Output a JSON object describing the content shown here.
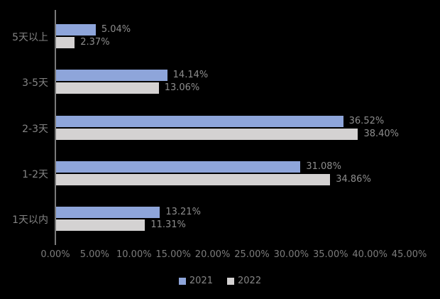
{
  "chart_data": {
    "type": "bar",
    "orientation": "horizontal",
    "title": "",
    "xlabel": "",
    "ylabel": "",
    "background_color": "#000000",
    "grid": false,
    "categories": [
      "5天以上",
      "3-5天",
      "2-3天",
      "1-2天",
      "1天以内"
    ],
    "series": [
      {
        "name": "2021",
        "color": "#8ea5da",
        "values": [
          5.04,
          14.14,
          36.52,
          31.08,
          13.21
        ],
        "data_labels": [
          "5.04%",
          "14.14%",
          "36.52%",
          "31.08%",
          "13.21%"
        ]
      },
      {
        "name": "2022",
        "color": "#d4d2d2",
        "values": [
          2.37,
          13.06,
          38.4,
          34.86,
          11.31
        ],
        "data_labels": [
          "2.37%",
          "13.06%",
          "38.40%",
          "34.86%",
          "11.31%"
        ]
      }
    ],
    "x_axis": {
      "min": 0,
      "max": 45,
      "tick_step": 5,
      "tick_labels": [
        "0.00%",
        "5.00%",
        "10.00%",
        "15.00%",
        "20.00%",
        "25.00%",
        "30.00%",
        "35.00%",
        "40.00%",
        "45.00%"
      ]
    },
    "legend": {
      "position": "bottom",
      "items": [
        {
          "label": "2021",
          "color": "#8ea5da"
        },
        {
          "label": "2022",
          "color": "#d4d2d2"
        }
      ]
    },
    "axis_line_color": "#7a7a7a",
    "label_color": "#8d8d8d"
  }
}
